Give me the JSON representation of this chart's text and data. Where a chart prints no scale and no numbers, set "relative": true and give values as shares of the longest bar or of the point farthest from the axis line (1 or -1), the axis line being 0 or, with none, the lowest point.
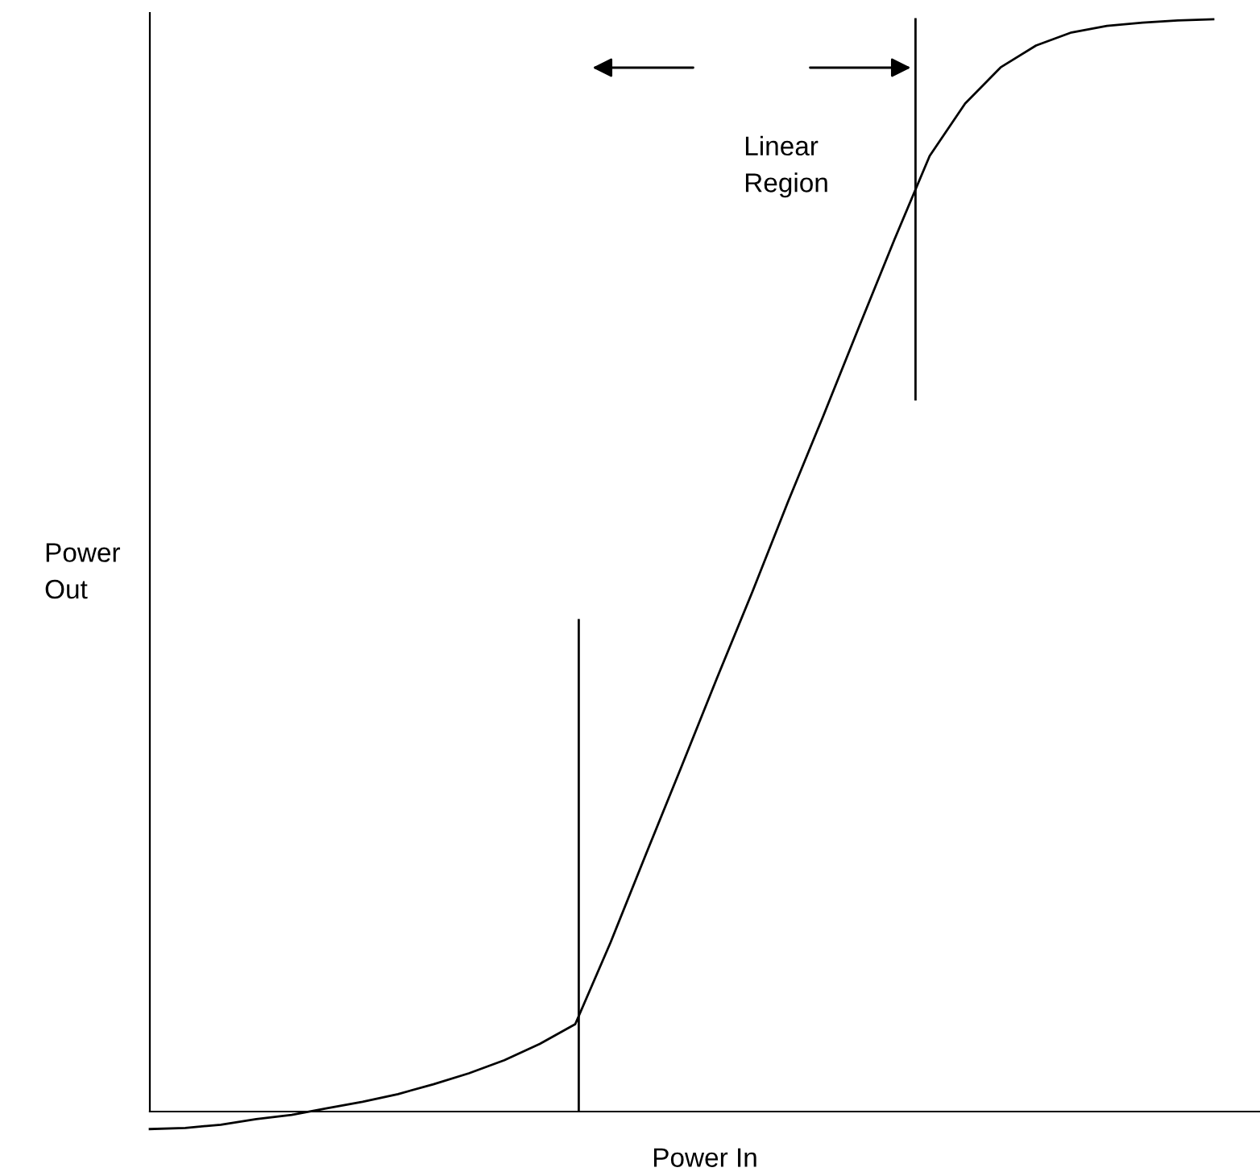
{
  "chart_data": {
    "type": "line",
    "relative": true,
    "xlabel": "Power In",
    "ylabel": "Power\nOut",
    "categories": [
      null,
      null,
      null,
      null,
      null,
      null,
      null,
      null,
      null,
      null,
      null,
      null,
      null,
      null,
      null,
      null,
      null,
      null,
      null,
      null,
      null,
      null,
      null,
      null,
      null,
      null,
      null,
      null,
      null,
      null,
      null
    ],
    "series": [
      {
        "color": "#000000",
        "values": [
          -0.016,
          -0.015,
          -0.012,
          -0.007,
          -0.003,
          0.003,
          0.009,
          0.016,
          0.025,
          0.035,
          0.047,
          0.062,
          0.08,
          0.155,
          0.236,
          0.316,
          0.397,
          0.476,
          0.558,
          0.637,
          0.718,
          0.798,
          0.875,
          0.923,
          0.956,
          0.976,
          0.988,
          0.994,
          0.997,
          0.999,
          1
        ]
      }
    ],
    "annotations": [
      "Linear\nRegion"
    ],
    "marker": "none",
    "line_style": "solid"
  }
}
